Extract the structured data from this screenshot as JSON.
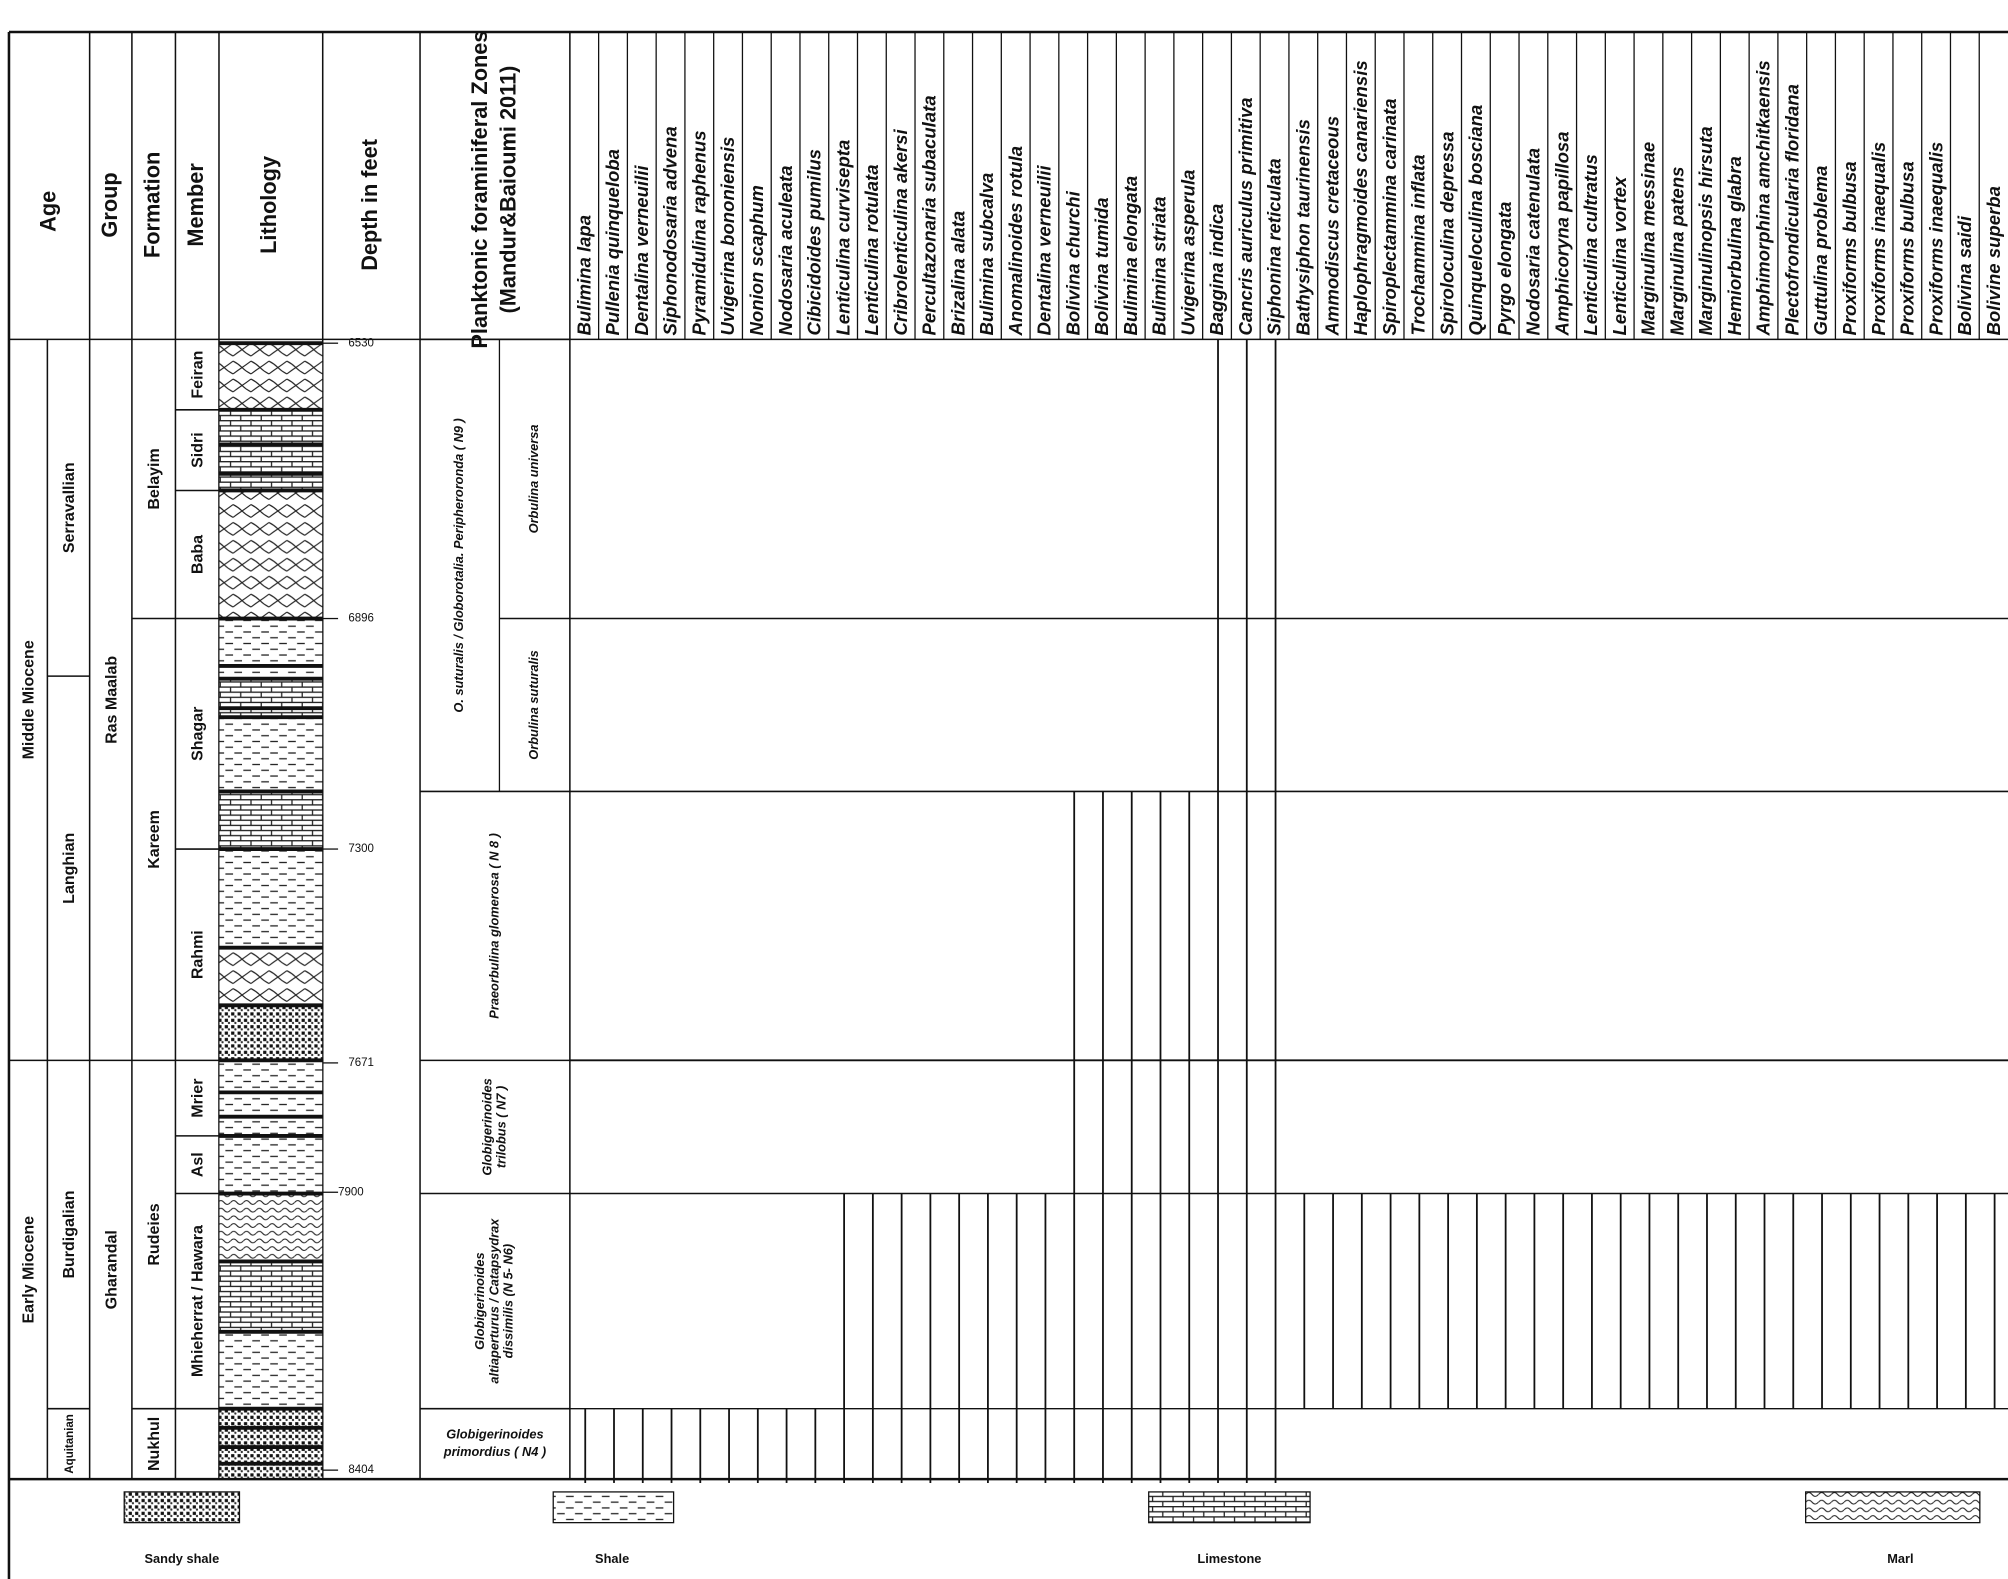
{
  "header": {
    "age": "Age",
    "group": "Group",
    "formation": "Formation",
    "member": "Member",
    "lithology": "Lithology",
    "depth": "Depth in feet",
    "zones": [
      "Planktonic foraminiferal Zones",
      "(Mandur&Baioumi 2011)"
    ]
  },
  "species": [
    "Bulimina lapa",
    "Pullenia quinqueloba",
    "Dentalina verneuilii",
    "Siphonodosaria advena",
    "Pyramidulina raphenus",
    "Uvigerina bononiensis",
    "Nonion scaphum",
    "Nodosaria aculeata",
    "Cibicidoides pumilus",
    "Lenticulina curvisepta",
    "Lenticulina rotulata",
    "Cribrolenticulina akersi",
    "Percultazonaria subaculata",
    "Brizalina alata",
    "Bulimina subcalva",
    "Anomalinoides rotula",
    "Dentalina verneuilii",
    "Bolivina churchi",
    "Bolivina tumida",
    "Bulimina elongata",
    "Bulimina striata",
    "Uvigerina asperula",
    "Baggina indica",
    "Cancris auriculus primitiva",
    "Siphonina reticulata",
    "Bathysiphon taurinensis",
    "Ammodiscus cretaceous",
    "Haplophragmoides canariensis",
    "Spiroplectammina carinata",
    "Trochammina inflata",
    "Spiroloculina depressa",
    "Quinqueloculina bosciana",
    "Pyrgo elongata",
    "Nodosaria catenulata",
    "Amphicoryna papillosa",
    "Lenticulina cultratus",
    "Lenticulina vortex",
    "Marginulina messinae",
    "Marginulina patens",
    "Marginulinopsis hirsuta",
    "Hemiorbulina glabra",
    "Amphimorphina amchitkaensis",
    "Plectofrondicularia floridana",
    "Guttulina problema",
    "Proxiforms bulbusa",
    "Proxiforms inaequalis",
    "Proxiforms bulbusa",
    "Proxiforms inaequalis",
    "Bolivina saidi",
    "Bolivine superba"
  ],
  "epochs": [
    "Middle Miocene",
    "Early Miocene"
  ],
  "stages": [
    "Serravallian",
    "Langhian",
    "Burdigalian",
    "Aquitanian"
  ],
  "groups": [
    "Ras Maalab",
    "Gharandal"
  ],
  "formations": [
    "Belayim",
    "Kareem",
    "Rudeies",
    "Nukhul"
  ],
  "members": [
    "Feiran",
    "Sidri",
    "Baba",
    "Shagar",
    "Rahmi",
    "Mrier",
    "Asl",
    "Mhieherrat / Hawara"
  ],
  "depths": [
    6530,
    6896,
    7300,
    7671,
    7900,
    8404
  ],
  "zones": [
    [
      "O. suturalis / Globorotalia. Peripheroronda   ( N9 )"
    ],
    [
      "Orbulina universa"
    ],
    [
      "Orbulina suturalis"
    ],
    [
      "Praeorbulina glomerosa ( N 8 )"
    ],
    [
      "Globigerinoides",
      "trilobus ( N7 )"
    ],
    [
      "Globigerinoides",
      "altiaperturus / Catapsydrax",
      "dissimilis (N 5- N6)"
    ],
    [
      "Globigerinoides",
      "primordius ( N4 )"
    ]
  ],
  "legend": [
    "Sandy shale",
    "Shale",
    "Limestone",
    "Marl"
  ]
}
